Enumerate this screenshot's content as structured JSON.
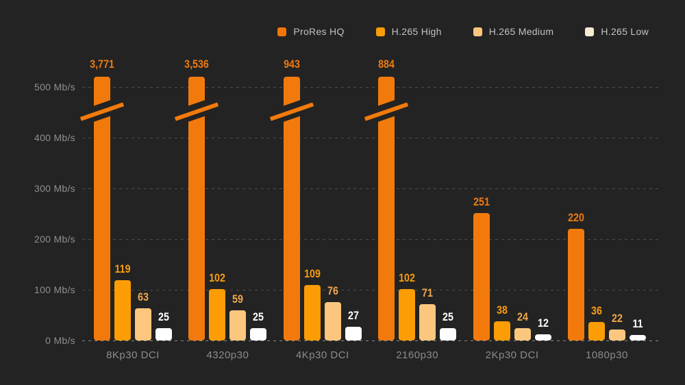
{
  "background_color": "#232323",
  "accent_color": "#F2750A",
  "legend": {
    "items": [
      {
        "label": "ProRes HQ",
        "color": "#F2750A"
      },
      {
        "label": "H.265 High",
        "color": "#FB9D08"
      },
      {
        "label": "H.265 Medium",
        "color": "#FBC77F"
      },
      {
        "label": "H.265 Low",
        "color": "#F8E9D2"
      }
    ]
  },
  "chart_data": {
    "type": "bar",
    "title": "",
    "xlabel": "",
    "ylabel": "Mb/s",
    "categories": [
      "8Kp30 DCI",
      "4320p30",
      "4Kp30 DCI",
      "2160p30",
      "2Kp30 DCI",
      "1080p30"
    ],
    "series": [
      {
        "name": "ProRes HQ",
        "values": [
          3771,
          3536,
          943,
          884,
          251,
          220
        ],
        "display": [
          "3,771",
          "3,536",
          "943",
          "884",
          "251",
          "220"
        ],
        "bar_color": "#F27A0C",
        "label_color": "#EE7B12"
      },
      {
        "name": "H.265 High",
        "values": [
          119,
          102,
          109,
          102,
          38,
          36
        ],
        "display": [
          "119",
          "102",
          "109",
          "102",
          "38",
          "36"
        ],
        "bar_color": "#FC9D06",
        "label_color": "#F99D10"
      },
      {
        "name": "H.265 Medium",
        "values": [
          63,
          59,
          76,
          71,
          24,
          22
        ],
        "display": [
          "63",
          "59",
          "76",
          "71",
          "24",
          "22"
        ],
        "bar_color": "#FBC77F",
        "label_color": "#F0A84B"
      },
      {
        "name": "H.265 Low",
        "values": [
          25,
          25,
          27,
          25,
          12,
          11
        ],
        "display": [
          "25",
          "25",
          "27",
          "25",
          "12",
          "11"
        ],
        "bar_color": "#FFFFFF",
        "label_color": "#FFFFFF"
      }
    ],
    "y_ticks": [
      {
        "value": 500,
        "label": "500 Mb/s"
      },
      {
        "value": 400,
        "label": "400 Mb/s"
      },
      {
        "value": 300,
        "label": "300 Mb/s"
      },
      {
        "value": 200,
        "label": "200 Mb/s"
      },
      {
        "value": 100,
        "label": "100 Mb/s"
      },
      {
        "value": 0,
        "label": "0 Mb/s"
      }
    ],
    "ylim": [
      0,
      520
    ],
    "grid": "dashed horizontal gridlines",
    "legend_position": "top",
    "axis_break": {
      "note": "ProRes HQ bars for 8Kp30 DCI, 4320p30, 4Kp30 DCI and 2160p30 exceed the y-axis range and are drawn clipped with a diagonal break marker",
      "clip_above_value": 520
    }
  }
}
